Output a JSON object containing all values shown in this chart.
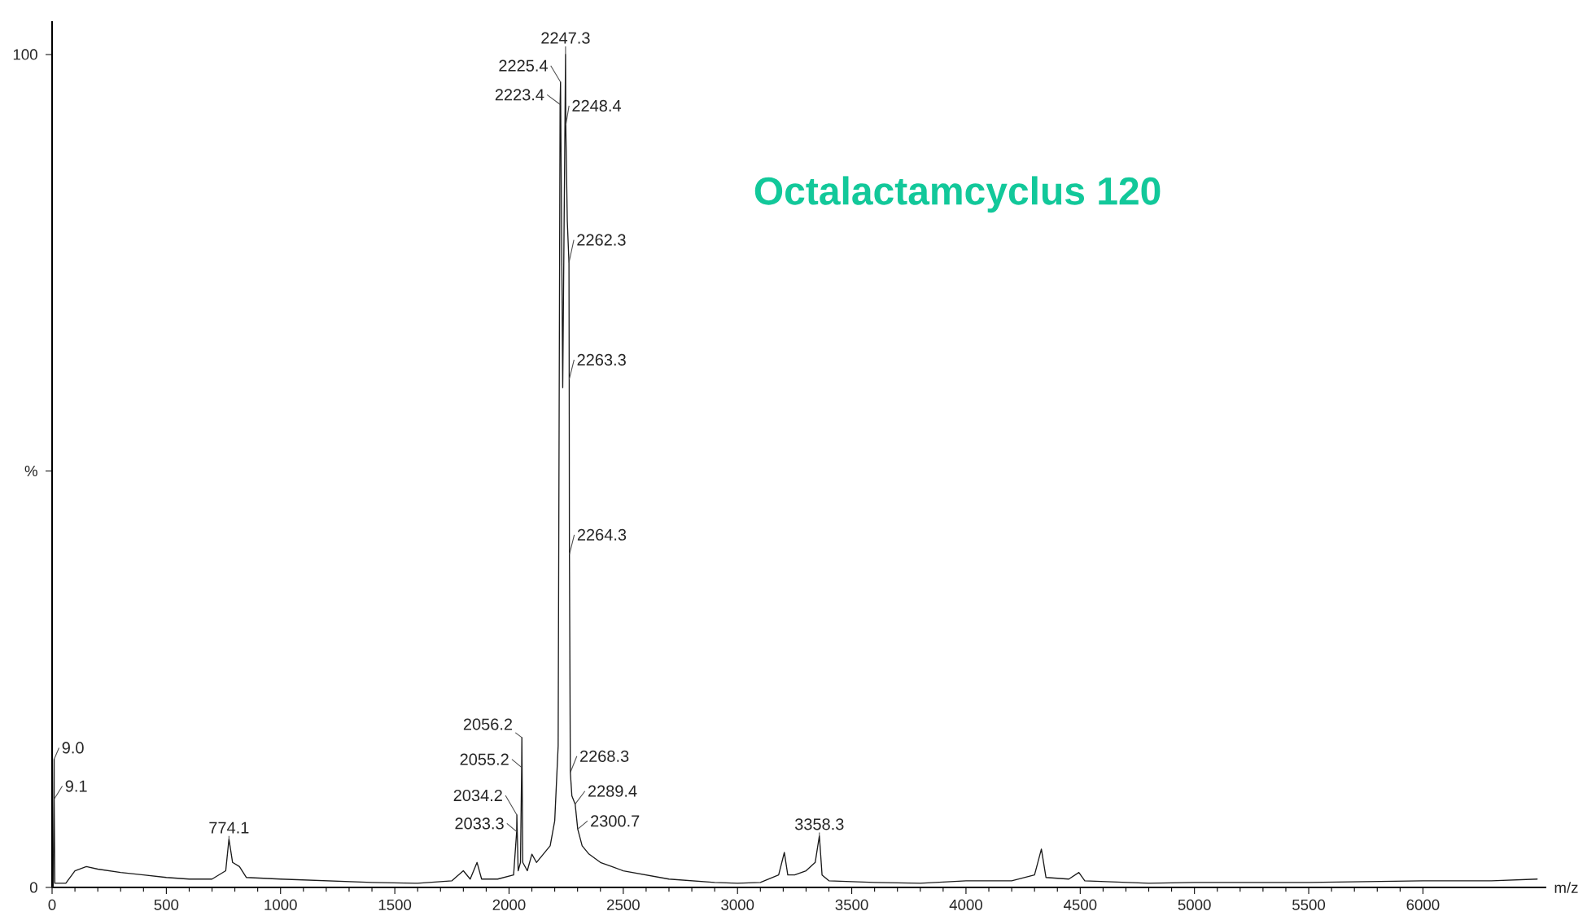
{
  "chart_data": {
    "type": "line",
    "title": "Octalactamcyclus 120",
    "xlabel": "m/z",
    "xlim": [
      0,
      6540
    ],
    "ylim": [
      0,
      104
    ],
    "xticks": [
      0,
      500,
      1000,
      1500,
      2000,
      2500,
      3000,
      3500,
      4000,
      4500,
      5000,
      5500,
      6000
    ],
    "yticks": [
      0,
      {
        "value": 50,
        "label": "%"
      },
      100
    ],
    "grid": false,
    "legend": false,
    "marker": "none",
    "line_style": "solid",
    "series": [
      {
        "color": "#1a1a1a",
        "x": [
          0,
          5,
          9,
          9.1,
          12,
          60,
          100,
          150,
          200,
          300,
          400,
          500,
          600,
          700,
          760,
          774.1,
          790,
          820,
          850,
          1000,
          1200,
          1400,
          1600,
          1750,
          1800,
          1830,
          1860,
          1880,
          1950,
          2020,
          2033.3,
          2034.2,
          2040,
          2050,
          2055.2,
          2056.2,
          2060,
          2080,
          2100,
          2120,
          2150,
          2180,
          2200,
          2215,
          2223.4,
          2225.4,
          2235,
          2247.3,
          2248.4,
          2255,
          2262.3,
          2263.3,
          2264.3,
          2268.3,
          2275,
          2289.4,
          2300.7,
          2320,
          2350,
          2400,
          2450,
          2500,
          2600,
          2700,
          2800,
          2900,
          3000,
          3100,
          3180,
          3205,
          3220,
          3250,
          3300,
          3340,
          3358.3,
          3370,
          3400,
          3600,
          3800,
          4000,
          4200,
          4300,
          4330,
          4350,
          4450,
          4494,
          4520,
          4800,
          5000,
          5500,
          6000,
          6300,
          6500
        ],
        "values": [
          0,
          0,
          15.4,
          10.6,
          0.5,
          0.5,
          2,
          2.5,
          2.2,
          1.8,
          1.5,
          1.2,
          1,
          1,
          2,
          5.8,
          3,
          2.5,
          1.2,
          1,
          0.8,
          0.6,
          0.5,
          0.8,
          2,
          1,
          3,
          1,
          1,
          1.5,
          6.7,
          8.7,
          2,
          3,
          14.4,
          18,
          3,
          2,
          4,
          3,
          4,
          5,
          8,
          17,
          94,
          96.7,
          60,
          100,
          91.5,
          80,
          75,
          61,
          40,
          13.8,
          11,
          10,
          7,
          5,
          4,
          3,
          2.5,
          2,
          1.5,
          1,
          0.8,
          0.6,
          0.5,
          0.6,
          1.5,
          4.2,
          1.5,
          1.5,
          2,
          3,
          6.2,
          1.5,
          0.8,
          0.6,
          0.5,
          0.8,
          0.8,
          1.5,
          4.6,
          1.2,
          1,
          1.8,
          0.8,
          0.5,
          0.6,
          0.6,
          0.8,
          0.8,
          1
        ]
      }
    ],
    "annotations": [
      {
        "text": "9.0",
        "x": 9,
        "y": 15.4
      },
      {
        "text": "9.1",
        "x": 9.1,
        "y": 10.6
      },
      {
        "text": "774.1",
        "x": 774.1,
        "y": 5.8
      },
      {
        "text": "2033.3",
        "x": 2033.3,
        "y": 6.7
      },
      {
        "text": "2034.2",
        "x": 2034.2,
        "y": 8.7
      },
      {
        "text": "2055.2",
        "x": 2055.2,
        "y": 14.4
      },
      {
        "text": "2056.2",
        "x": 2056.2,
        "y": 18
      },
      {
        "text": "2223.4",
        "x": 2223.4,
        "y": 94
      },
      {
        "text": "2225.4",
        "x": 2225.4,
        "y": 96.7
      },
      {
        "text": "2247.3",
        "x": 2247.3,
        "y": 100
      },
      {
        "text": "2248.4",
        "x": 2248.4,
        "y": 91.5
      },
      {
        "text": "2262.3",
        "x": 2262.3,
        "y": 75
      },
      {
        "text": "2263.3",
        "x": 2263.3,
        "y": 61
      },
      {
        "text": "2264.3",
        "x": 2264.3,
        "y": 40
      },
      {
        "text": "2268.3",
        "x": 2268.3,
        "y": 13.8
      },
      {
        "text": "2289.4",
        "x": 2289.4,
        "y": 10
      },
      {
        "text": "2300.7",
        "x": 2300.7,
        "y": 7
      },
      {
        "text": "3358.3",
        "x": 3358.3,
        "y": 6.2
      }
    ]
  }
}
